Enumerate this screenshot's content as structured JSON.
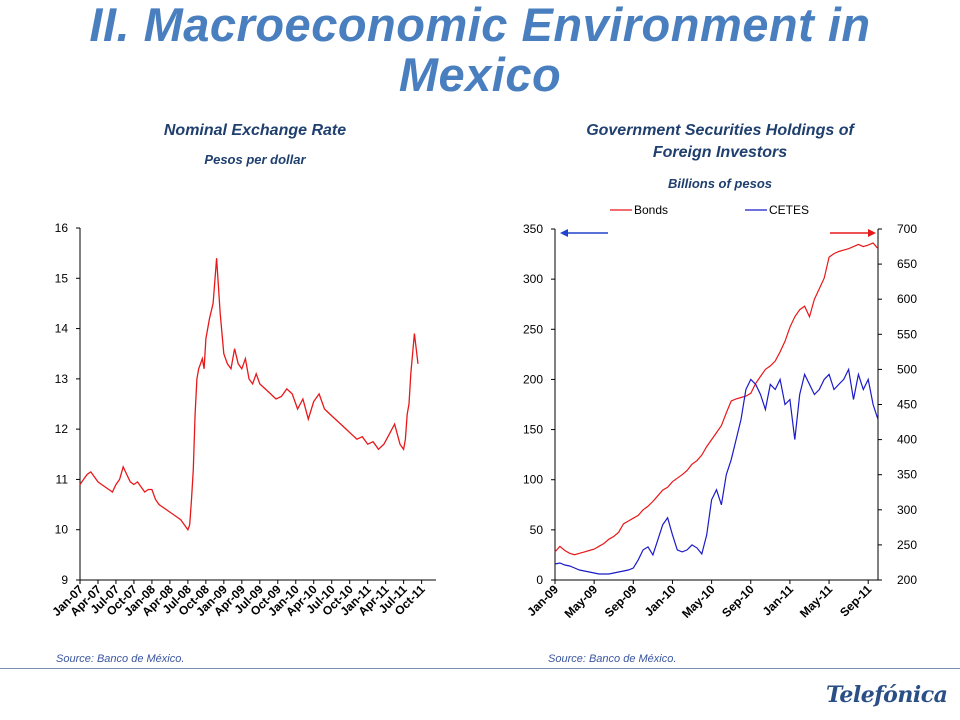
{
  "slide": {
    "title_line1": "II. Macroeconomic Environment in",
    "title_line2": "Mexico",
    "logo": "Telefónica"
  },
  "chart_data": [
    {
      "type": "line",
      "title": "Nominal Exchange Rate",
      "subtitle": "Pesos per dollar",
      "source": "Source: Banco de México.",
      "ylim": [
        9,
        16
      ],
      "yticks": [
        9,
        10,
        11,
        12,
        13,
        14,
        15,
        16
      ],
      "xticks": [
        "Jan-07",
        "Apr-07",
        "Jul-07",
        "Oct-07",
        "Jan-08",
        "Apr-08",
        "Jul-08",
        "Oct-08",
        "Jan-09",
        "Apr-09",
        "Jul-09",
        "Oct-09",
        "Jan-10",
        "Apr-10",
        "Jul-10",
        "Oct-10",
        "Jan-11",
        "Apr-11",
        "Jul-11",
        "Oct-11"
      ],
      "color": "#e8181a",
      "grid": false,
      "series": [
        {
          "x": [
            0,
            0.2,
            0.4,
            0.6,
            0.8,
            1.0,
            1.2,
            1.4,
            1.6,
            1.8,
            2.0,
            2.2,
            2.4,
            2.6,
            2.8,
            3.0,
            3.2,
            3.4,
            3.6,
            3.8,
            4.0,
            4.2,
            4.4,
            4.6,
            4.8,
            5.0,
            5.2,
            5.4,
            5.6,
            5.8,
            6.0,
            6.1,
            6.2,
            6.3,
            6.4,
            6.5,
            6.6,
            6.7,
            6.8,
            6.9,
            7.0,
            7.2,
            7.4,
            7.6,
            7.8,
            8.0,
            8.2,
            8.4,
            8.6,
            8.8,
            9.0,
            9.2,
            9.4,
            9.6,
            9.8,
            10.0,
            10.3,
            10.6,
            10.9,
            11.2,
            11.5,
            11.8,
            12.1,
            12.4,
            12.7,
            13.0,
            13.3,
            13.6,
            13.9,
            14.2,
            14.5,
            14.8,
            15.1,
            15.4,
            15.7,
            16.0,
            16.3,
            16.6,
            16.9,
            17.2,
            17.5,
            17.8,
            18.0,
            18.1,
            18.2,
            18.3,
            18.35,
            18.4,
            18.5,
            18.6,
            18.7,
            18.8
          ],
          "values": [
            10.9,
            11.0,
            11.1,
            11.15,
            11.05,
            10.95,
            10.9,
            10.85,
            10.8,
            10.75,
            10.9,
            11.0,
            11.25,
            11.1,
            10.95,
            10.9,
            10.95,
            10.85,
            10.75,
            10.8,
            10.8,
            10.6,
            10.5,
            10.45,
            10.4,
            10.35,
            10.3,
            10.25,
            10.2,
            10.1,
            10.0,
            10.1,
            10.6,
            11.2,
            12.3,
            13.0,
            13.2,
            13.3,
            13.4,
            13.2,
            13.8,
            14.2,
            14.5,
            15.4,
            14.3,
            13.5,
            13.3,
            13.2,
            13.6,
            13.3,
            13.2,
            13.4,
            13.0,
            12.9,
            13.1,
            12.9,
            12.8,
            12.7,
            12.6,
            12.65,
            12.8,
            12.7,
            12.4,
            12.6,
            12.2,
            12.55,
            12.7,
            12.4,
            12.3,
            12.2,
            12.1,
            12.0,
            11.9,
            11.8,
            11.85,
            11.7,
            11.75,
            11.6,
            11.7,
            11.9,
            12.1,
            11.7,
            11.6,
            11.8,
            12.3,
            12.5,
            12.8,
            13.1,
            13.5,
            13.9,
            13.6,
            13.3
          ]
        }
      ]
    },
    {
      "type": "line",
      "title_line1": "Government Securities Holdings of",
      "title_line2": "Foreign Investors",
      "subtitle": "Billions of pesos",
      "source": "Source: Banco de México.",
      "ylim_left": [
        0,
        350
      ],
      "yticks_left": [
        0,
        50,
        100,
        150,
        200,
        250,
        300,
        350
      ],
      "ylim_right": [
        200,
        700
      ],
      "yticks_right": [
        200,
        250,
        300,
        350,
        400,
        450,
        500,
        550,
        600,
        650,
        700
      ],
      "xticks": [
        "Jan-09",
        "May-09",
        "Sep-09",
        "Jan-10",
        "May-10",
        "Sep-10",
        "Jan-11",
        "May-11",
        "Sep-11"
      ],
      "legend": "top",
      "series": [
        {
          "name": "Bonds",
          "color": "#e8181a",
          "axis": "right",
          "x": [
            0,
            0.5,
            1.0,
            1.5,
            2.0,
            2.5,
            3.0,
            3.5,
            4.0,
            4.5,
            5.0,
            5.5,
            6.0,
            6.5,
            7.0,
            7.5,
            8.0,
            8.5,
            9.0,
            9.5,
            10.0,
            10.5,
            11.0,
            11.5,
            12.0,
            12.5,
            13.0,
            13.5,
            14.0,
            14.5,
            15.0,
            15.5,
            16.0,
            16.5,
            17.0,
            17.5,
            18.0,
            18.5,
            19.0,
            19.5,
            20.0,
            20.5,
            21.0,
            21.5,
            22.0,
            22.5,
            23.0,
            23.5,
            24.0,
            24.5,
            25.0,
            25.5,
            26.0,
            26.5,
            27.0,
            27.5,
            28.0,
            28.5,
            29.0,
            29.5,
            30.0,
            30.5,
            31.0,
            31.5,
            32.0,
            32.5,
            33.0
          ],
          "values": [
            240,
            248,
            242,
            238,
            236,
            238,
            240,
            242,
            244,
            248,
            252,
            258,
            262,
            268,
            280,
            284,
            288,
            292,
            300,
            305,
            312,
            320,
            328,
            332,
            340,
            345,
            350,
            356,
            365,
            370,
            378,
            390,
            400,
            410,
            420,
            438,
            455,
            458,
            460,
            462,
            466,
            480,
            490,
            500,
            505,
            512,
            525,
            540,
            560,
            575,
            585,
            590,
            575,
            600,
            615,
            630,
            660,
            665,
            668,
            670,
            672,
            675,
            678,
            675,
            677,
            680,
            672
          ]
        },
        {
          "name": "CETES",
          "color": "#1b1bc8",
          "axis": "left",
          "x": [
            0,
            0.5,
            1.0,
            1.5,
            2.0,
            2.5,
            3.0,
            3.5,
            4.0,
            4.5,
            5.0,
            5.5,
            6.0,
            6.5,
            7.0,
            7.5,
            8.0,
            8.5,
            9.0,
            9.5,
            10.0,
            10.5,
            11.0,
            11.5,
            12.0,
            12.5,
            13.0,
            13.5,
            14.0,
            14.5,
            15.0,
            15.5,
            16.0,
            16.5,
            17.0,
            17.5,
            18.0,
            18.5,
            19.0,
            19.5,
            20.0,
            20.5,
            21.0,
            21.5,
            22.0,
            22.5,
            23.0,
            23.5,
            24.0,
            24.5,
            25.0,
            25.5,
            26.0,
            26.5,
            27.0,
            27.5,
            28.0,
            28.5,
            29.0,
            29.5,
            30.0,
            30.5,
            31.0,
            31.5,
            32.0,
            32.5,
            33.0
          ],
          "values": [
            16,
            17,
            15,
            14,
            12,
            10,
            9,
            8,
            7,
            6,
            6,
            6,
            7,
            8,
            9,
            10,
            12,
            20,
            30,
            33,
            25,
            40,
            55,
            62,
            45,
            30,
            28,
            30,
            35,
            32,
            26,
            45,
            80,
            90,
            75,
            105,
            120,
            140,
            160,
            190,
            200,
            195,
            185,
            170,
            195,
            190,
            200,
            175,
            180,
            140,
            185,
            205,
            195,
            185,
            190,
            200,
            205,
            190,
            195,
            200,
            210,
            180,
            205,
            190,
            200,
            175,
            160
          ]
        }
      ]
    }
  ]
}
